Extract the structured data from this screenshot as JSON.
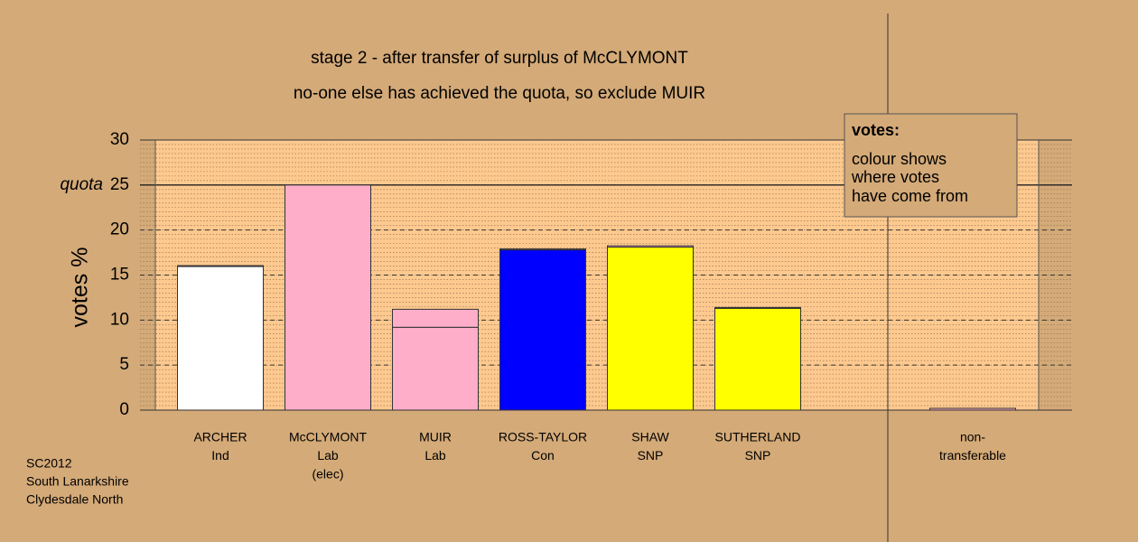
{
  "chart_data": {
    "type": "stacked-bar",
    "title": "stage 2 - after transfer of surplus of McCLYMONT",
    "subtitle": "no-one else has achieved the quota, so exclude MUIR",
    "ylabel": "votes %",
    "categories": [
      [
        "ARCHER",
        "Ind"
      ],
      [
        "McCLYMONT",
        "Lab",
        "(elec)"
      ],
      [
        "MUIR",
        "Lab"
      ],
      [
        "ROSS-TAYLOR",
        "Con"
      ],
      [
        "SHAW",
        "SNP"
      ],
      [
        "SUTHERLAND",
        "SNP"
      ],
      [
        "non-",
        "transferable"
      ]
    ],
    "series": [
      {
        "colors": [
          "#ffffff",
          "#ffaec9",
          "#ffaec9",
          "#0000ff",
          "#ffff00",
          "#ffff00",
          "#ffaec9"
        ],
        "values": [
          15.95,
          25,
          9.2,
          17.8,
          18.1,
          11.3,
          null
        ]
      },
      {
        "color": "#ffaec9",
        "values": [
          0.1,
          null,
          2.0,
          0.1,
          0.15,
          0.1,
          0.2
        ]
      }
    ],
    "ylim": [
      0,
      30
    ],
    "yticks": [
      0,
      5,
      10,
      15,
      20,
      25,
      30
    ],
    "quota": {
      "value": 25,
      "label": "quota"
    },
    "legend": {
      "title": "votes:",
      "lines": [
        "colour shows",
        "where votes",
        "have come from"
      ]
    },
    "footnote": [
      "SC2012",
      "South Lanarkshire",
      "Clydesdale North"
    ]
  }
}
